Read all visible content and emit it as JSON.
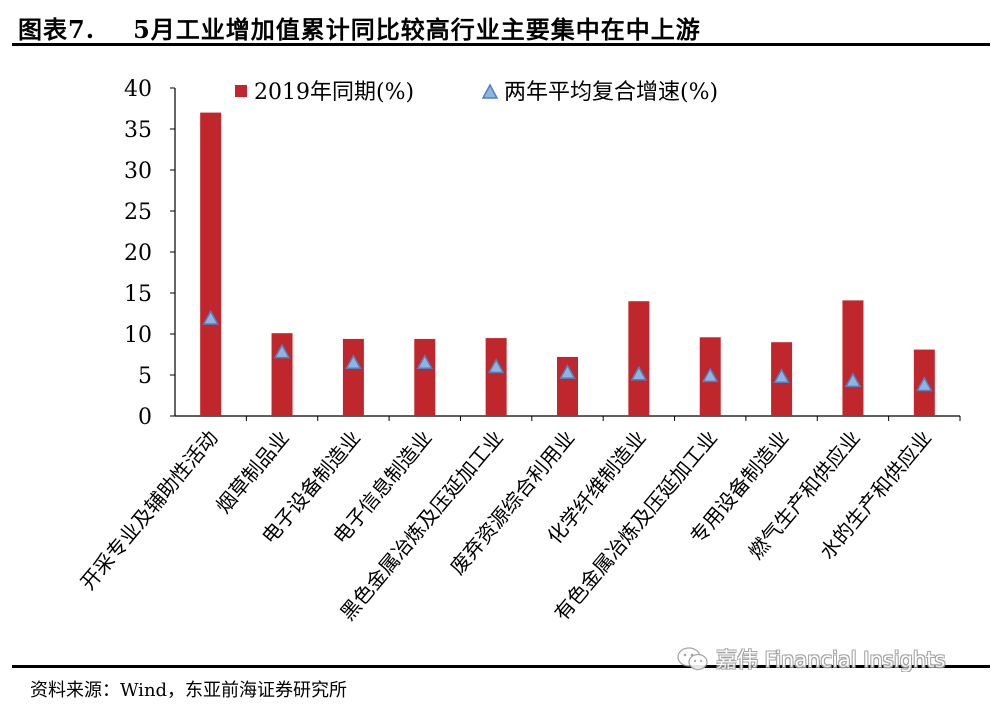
{
  "header": {
    "figure_label": "图表7.",
    "title": "5月工业增加值累计同比较高行业主要集中在中上游"
  },
  "footer": {
    "source": "资料来源：Wind，东亚前海证券研究所",
    "watermark": "嘉伟 Financial Insights",
    "watermark_icon": "wechat-icon"
  },
  "colors": {
    "bar": "#C0272D",
    "marker_fill": "#8EB4E3",
    "marker_stroke": "#4F81BD"
  },
  "chart_data": {
    "type": "bar",
    "categories": [
      "开采专业及辅助性活动",
      "烟草制品业",
      "电子设备制造业",
      "电子信息制造业",
      "黑色金属冶炼及压延加工业",
      "废弃资源综合利用业",
      "化学纤维制造业",
      "有色金属冶炼及压延加工业",
      "专用设备制造业",
      "燃气生产和供应业",
      "水的生产和供应业"
    ],
    "series": [
      {
        "name": "2019年同期(%)",
        "type": "bar",
        "values": [
          37.0,
          10.1,
          9.4,
          9.4,
          9.5,
          7.2,
          14.0,
          9.6,
          9.0,
          14.1,
          8.1
        ]
      },
      {
        "name": "两年平均复合增速(%)",
        "type": "marker",
        "values": [
          11.9,
          7.8,
          6.5,
          6.5,
          6.0,
          5.3,
          5.1,
          4.9,
          4.8,
          4.3,
          3.8
        ]
      }
    ],
    "ylim": [
      0,
      40
    ],
    "yticks": [
      0,
      5,
      10,
      15,
      20,
      25,
      30,
      35,
      40
    ],
    "grid": false,
    "legend_position": "top"
  }
}
